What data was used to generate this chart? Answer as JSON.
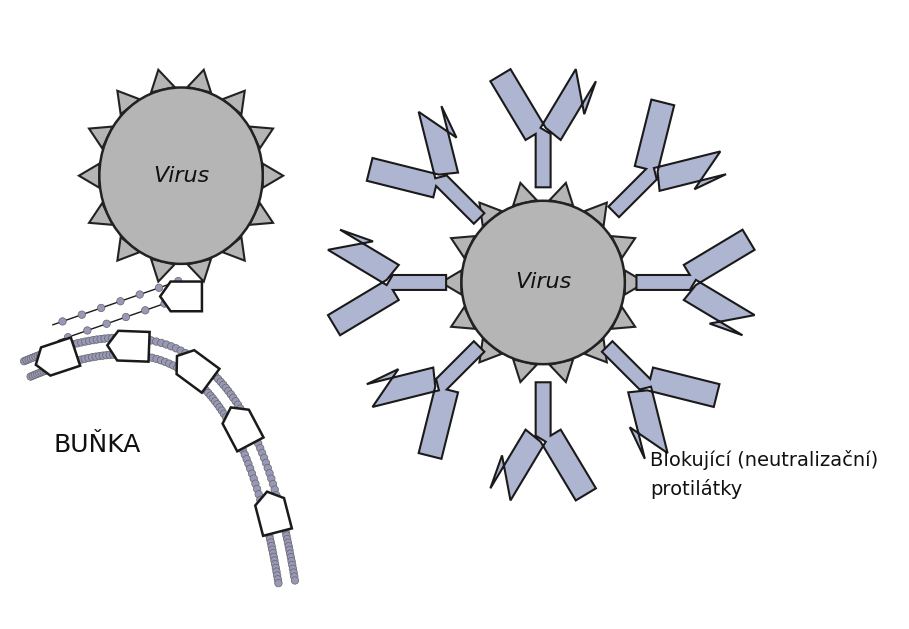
{
  "bg": "#ffffff",
  "virus_gray": "#b5b5b5",
  "virus_border": "#222222",
  "antibody_fill": "#aeb5d0",
  "antibody_border": "#1a1a1a",
  "membrane_fill": "#ffffff",
  "membrane_border": "#1a1a1a",
  "coil_fill": "#9898b8",
  "coil_border": "#666666",
  "text_dark": "#111111",
  "label_virus": "Virus",
  "label_bunka": "BUŇKA",
  "label_right_line1": "Blokující (neutralizační)",
  "label_right_line2": "protilátky",
  "spike_gray": "#b5b5b5"
}
